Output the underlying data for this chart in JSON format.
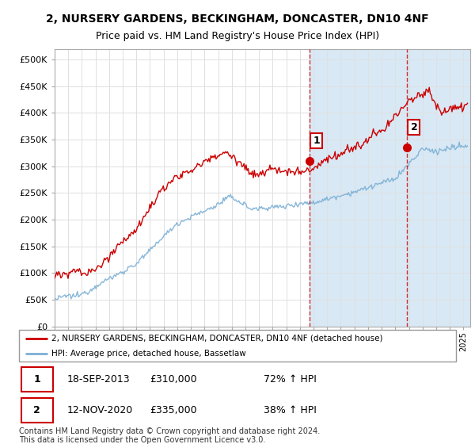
{
  "title": "2, NURSERY GARDENS, BECKINGHAM, DONCASTER, DN10 4NF",
  "subtitle": "Price paid vs. HM Land Registry's House Price Index (HPI)",
  "ylabel_ticks": [
    "£0",
    "£50K",
    "£100K",
    "£150K",
    "£200K",
    "£250K",
    "£300K",
    "£350K",
    "£400K",
    "£450K",
    "£500K"
  ],
  "ytick_values": [
    0,
    50000,
    100000,
    150000,
    200000,
    250000,
    300000,
    350000,
    400000,
    450000,
    500000
  ],
  "ylim": [
    0,
    520000
  ],
  "xlim_start": 1995.0,
  "xlim_end": 2025.5,
  "red_line_color": "#cc0000",
  "blue_line_color": "#7bafd4",
  "marker1_date": 2013.72,
  "marker1_price": 310000,
  "marker2_date": 2020.87,
  "marker2_price": 335000,
  "marker1_label": "1",
  "marker2_label": "2",
  "vline1_x": 2013.72,
  "vline2_x": 2020.87,
  "legend_line1": "2, NURSERY GARDENS, BECKINGHAM, DONCASTER, DN10 4NF (detached house)",
  "legend_line2": "HPI: Average price, detached house, Bassetlaw",
  "table_row1": [
    "1",
    "18-SEP-2013",
    "£310,000",
    "72% ↑ HPI"
  ],
  "table_row2": [
    "2",
    "12-NOV-2020",
    "£335,000",
    "38% ↑ HPI"
  ],
  "footnote": "Contains HM Land Registry data © Crown copyright and database right 2024.\nThis data is licensed under the Open Government Licence v3.0.",
  "background_color": "#ffffff",
  "grid_color": "#e0e0e0",
  "shaded_region_color": "#d8e8f5",
  "title_fontsize": 10,
  "subtitle_fontsize": 9,
  "tick_fontsize": 8
}
